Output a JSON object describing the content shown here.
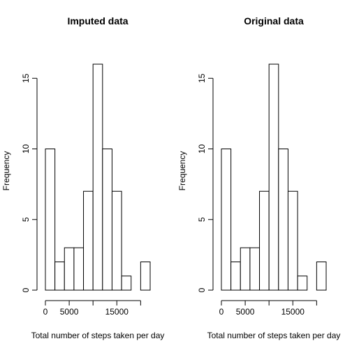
{
  "chart_data": [
    {
      "type": "bar",
      "title": "Imputed data",
      "xlabel": "Total number of steps taken per day",
      "ylabel": "Frequency",
      "bin_edges": [
        0,
        2000,
        4000,
        6000,
        8000,
        10000,
        12000,
        14000,
        16000,
        18000,
        20000,
        22000
      ],
      "values": [
        10,
        2,
        3,
        3,
        7,
        16,
        10,
        7,
        1,
        0,
        2
      ],
      "xticks": [
        0,
        5000,
        15000
      ],
      "xtick_labels": [
        "0",
        "5000",
        "15000"
      ],
      "x_axis_range": [
        0,
        20000
      ],
      "yticks": [
        0,
        5,
        10,
        15
      ],
      "ytick_labels": [
        "0",
        "5",
        "10",
        "15"
      ],
      "ylim": [
        0,
        16
      ]
    },
    {
      "type": "bar",
      "title": "Original data",
      "xlabel": "Total number of steps taken per day",
      "ylabel": "Frequency",
      "bin_edges": [
        0,
        2000,
        4000,
        6000,
        8000,
        10000,
        12000,
        14000,
        16000,
        18000,
        20000,
        22000
      ],
      "values": [
        10,
        2,
        3,
        3,
        7,
        16,
        10,
        7,
        1,
        0,
        2
      ],
      "xticks": [
        0,
        5000,
        15000
      ],
      "xtick_labels": [
        "0",
        "5000",
        "15000"
      ],
      "x_axis_range": [
        0,
        20000
      ],
      "yticks": [
        0,
        5,
        10,
        15
      ],
      "ytick_labels": [
        "0",
        "5",
        "10",
        "15"
      ],
      "ylim": [
        0,
        16
      ]
    }
  ]
}
